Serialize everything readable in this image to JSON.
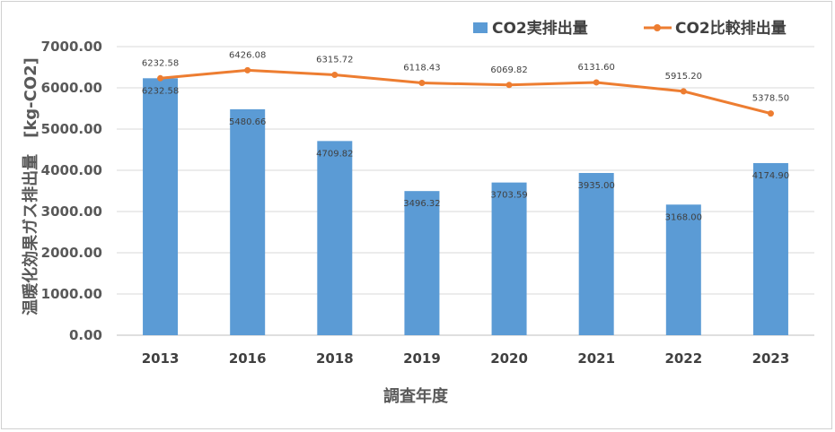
{
  "chart_data": {
    "type": "bar",
    "xlabel": "調査年度",
    "ylabel": "温暖化効果ガス排出量　[kg-CO2]",
    "categories": [
      "2013",
      "2016",
      "2018",
      "2019",
      "2020",
      "2021",
      "2022",
      "2023"
    ],
    "ylim": [
      0,
      7000
    ],
    "yticks": [
      "0.00",
      "1000.00",
      "2000.00",
      "3000.00",
      "4000.00",
      "5000.00",
      "6000.00",
      "7000.00"
    ],
    "grid": true,
    "legend_position": "top-right",
    "series": [
      {
        "name": "CO2実排出量",
        "type": "bar",
        "color": "#5b9bd5",
        "values": [
          6232.58,
          5480.66,
          4709.82,
          3496.32,
          3703.59,
          3935.0,
          3168.0,
          4174.9
        ],
        "labels": [
          "6232.58",
          "5480.66",
          "4709.82",
          "3496.32",
          "3703.59",
          "3935.00",
          "3168.00",
          "4174.90"
        ]
      },
      {
        "name": "CO2比較排出量",
        "type": "line",
        "color": "#ed7d31",
        "values": [
          6232.58,
          6426.08,
          6315.72,
          6118.43,
          6069.82,
          6131.6,
          5915.2,
          5378.5
        ],
        "labels": [
          "6232.58",
          "6426.08",
          "6315.72",
          "6118.43",
          "6069.82",
          "6131.60",
          "5915.20",
          "5378.50"
        ]
      }
    ]
  }
}
